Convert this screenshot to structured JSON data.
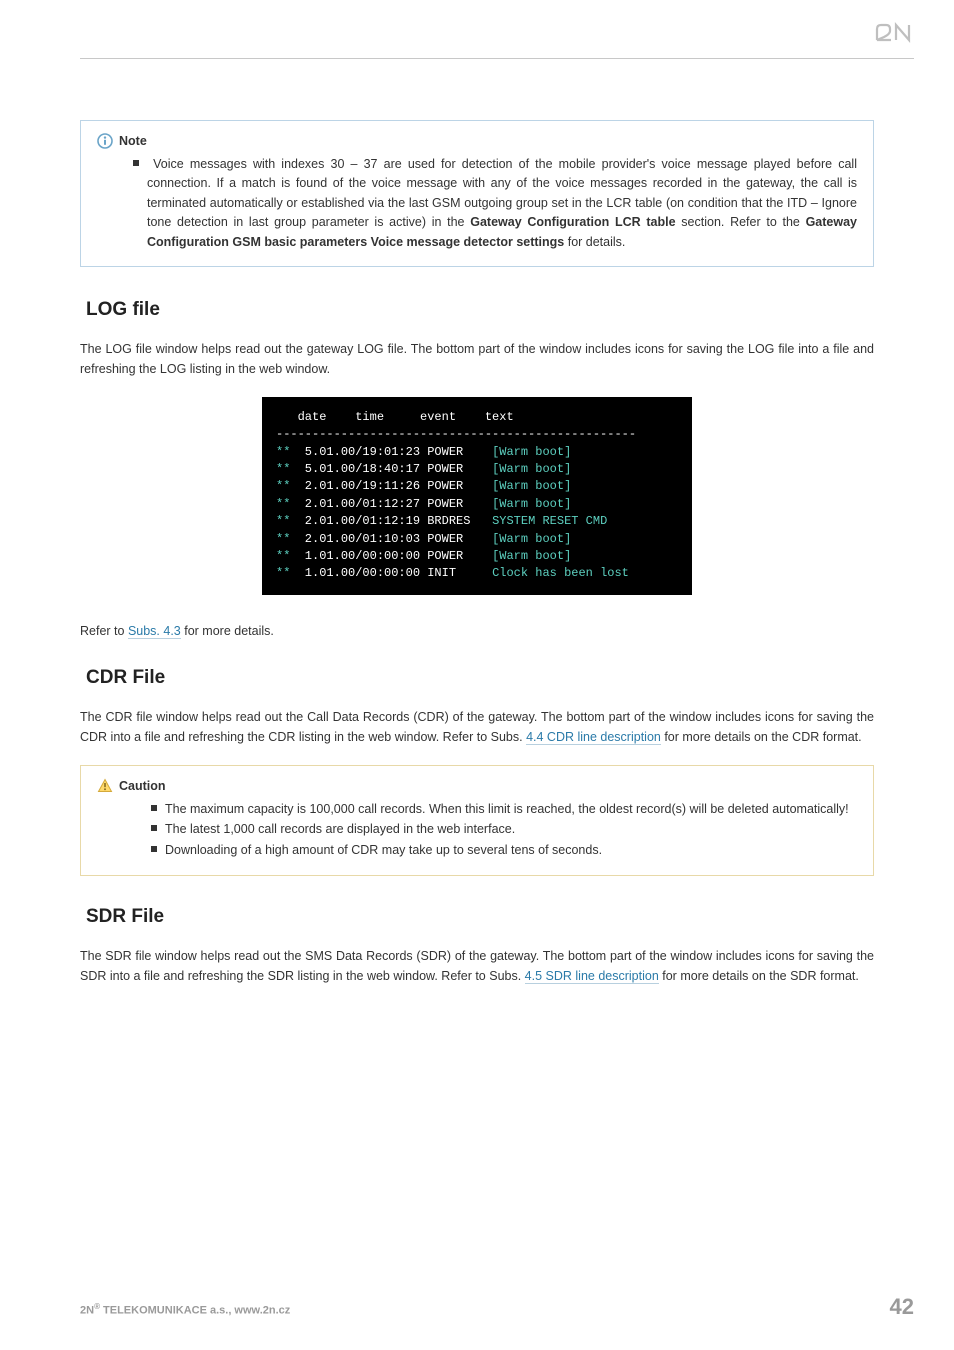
{
  "brand_logo_text": "2N",
  "colors": {
    "rule": "#c8c8c8",
    "text": "#333333",
    "link": "#2a7aa8",
    "link_underline": "#b8d0df",
    "note_border": "#bcd4e6",
    "caution_border": "#e8d9a8",
    "terminal_bg": "#000000",
    "terminal_fg": "#ffffff",
    "terminal_teal": "#5dd0c0",
    "footer_grey": "#9a9a9a"
  },
  "note": {
    "title": "Note",
    "body": "Voice messages with indexes 30 – 37 are used for detection of the mobile provider's voice message played before call connection. If a match is found of the voice message with any of the voice messages recorded in the gateway, the call is terminated automatically or established via the last GSM outgoing group set in the LCR table (on condition that the ITD – Ignore tone detection in last group parameter is active) in the ",
    "bold1": "Gateway Configuration  LCR table",
    "mid": " section. Refer to the ",
    "bold2": "Gateway Configuration  GSM basic parameters  Voice message detector settings",
    "tail": " for details."
  },
  "sections": {
    "log": {
      "heading": "LOG file",
      "para": "The LOG file window helps read out the gateway LOG file. The bottom part of the window includes icons for saving the LOG file into a file and refreshing the LOG listing in the web window.",
      "after_pre": "Refer to ",
      "after_link": "Subs. 4.3",
      "after_post": " for more details."
    },
    "cdr": {
      "heading": "CDR File",
      "para_pre": "The CDR file window helps read out the Call Data Records (CDR) of the gateway. The bottom part of the window includes icons for saving the CDR into a file and refreshing the CDR listing in the web window. Refer to Subs. ",
      "para_link": "4.4 CDR line description",
      "para_post": " for more details on the CDR format."
    },
    "sdr": {
      "heading": "SDR File",
      "para_pre": "The SDR file window helps read out the SMS Data Records (SDR) of the gateway. The bottom part of the window includes icons for saving the SDR into a file and refreshing the SDR listing in the web window. Refer to Subs. ",
      "para_link": "4.5 SDR line description",
      "para_post": " for more details on the SDR format."
    }
  },
  "terminal": {
    "header": "   date    time     event    text",
    "divider": "--------------------------------------------------",
    "rows": [
      {
        "p": "**",
        "dt": " 5.01.00/19:01:23",
        "ev": "POWER ",
        "tx": "[Warm boot]"
      },
      {
        "p": "**",
        "dt": " 5.01.00/18:40:17",
        "ev": "POWER ",
        "tx": "[Warm boot]"
      },
      {
        "p": "**",
        "dt": " 2.01.00/19:11:26",
        "ev": "POWER ",
        "tx": "[Warm boot]"
      },
      {
        "p": "**",
        "dt": " 2.01.00/01:12:27",
        "ev": "POWER ",
        "tx": "[Warm boot]"
      },
      {
        "p": "**",
        "dt": " 2.01.00/01:12:19",
        "ev": "BRDRES",
        "tx": "SYSTEM RESET CMD"
      },
      {
        "p": "**",
        "dt": " 2.01.00/01:10:03",
        "ev": "POWER ",
        "tx": "[Warm boot]"
      },
      {
        "p": "**",
        "dt": " 1.01.00/00:00:00",
        "ev": "POWER ",
        "tx": "[Warm boot]"
      },
      {
        "p": "**",
        "dt": " 1.01.00/00:00:00",
        "ev": "INIT  ",
        "tx": "Clock has been lost"
      }
    ]
  },
  "caution": {
    "title": "Caution",
    "items": [
      "The maximum capacity is 100,000 call records. When this limit is reached, the oldest record(s) will be deleted automatically!",
      "The latest 1,000 call records are displayed in the web interface.",
      "Downloading of a high amount of CDR may take up to several tens of seconds."
    ]
  },
  "footer": {
    "left_pre": "2N",
    "left_sup": "®",
    "left_post": " TELEKOMUNIKACE a.s., www.2n.cz",
    "page": "42"
  }
}
